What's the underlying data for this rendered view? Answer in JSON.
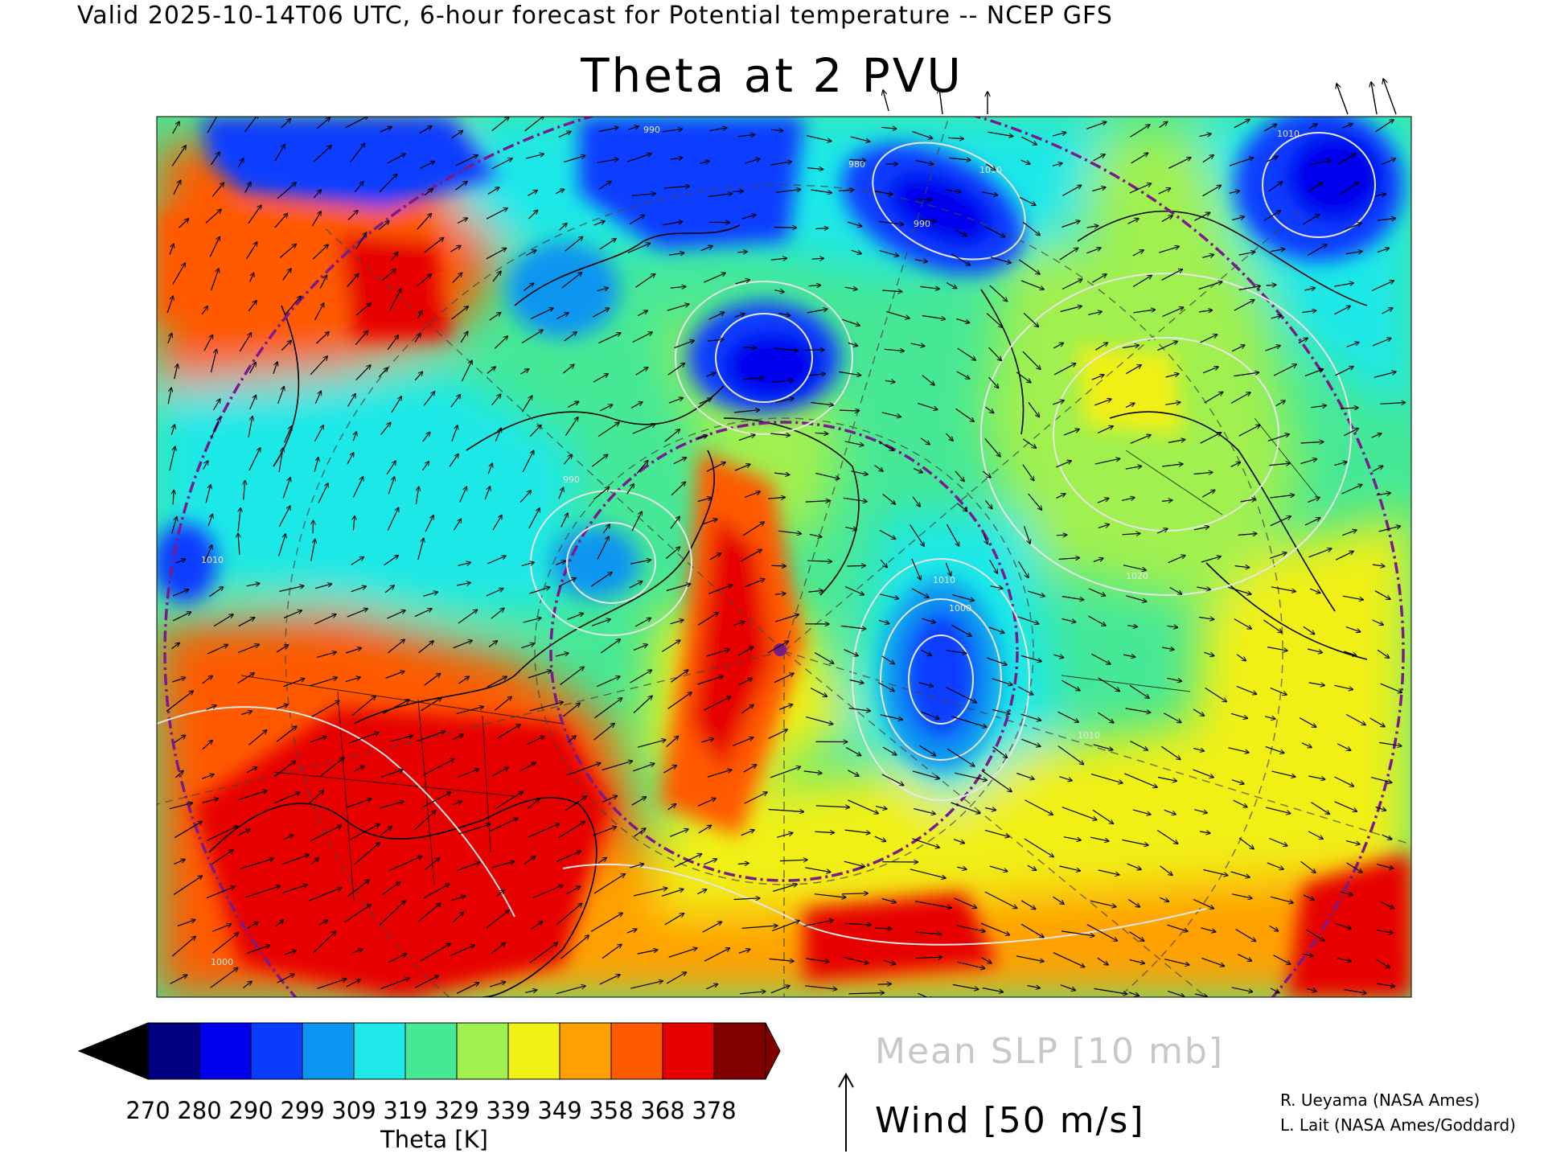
{
  "header": {
    "valid_line": "Valid 2025-10-14T06 UTC, 6-hour forecast for Potential temperature -- NCEP GFS"
  },
  "map": {
    "title": "Theta at 2 PVU",
    "field": "potential temperature on the 2 PVU surface",
    "slp_contour_labels": [
      "990",
      "980",
      "990",
      "1010",
      "1010",
      "1010",
      "990",
      "1010",
      "1000",
      "1020",
      "1010",
      "1000"
    ]
  },
  "colorbar": {
    "title": "Theta [K]",
    "tick_labels": [
      "270",
      "280",
      "290",
      "299",
      "309",
      "319",
      "329",
      "339",
      "349",
      "358",
      "368",
      "378"
    ],
    "colors": [
      "#000080",
      "#0000ee",
      "#0a3cff",
      "#0a96f0",
      "#1ee8e8",
      "#46e896",
      "#a0f050",
      "#f0f014",
      "#ffa000",
      "#ff5a00",
      "#e60000",
      "#820000"
    ],
    "under_color": "#000000",
    "over_color": "#820000"
  },
  "legend": {
    "slp_label": "Mean SLP [10 mb]",
    "wind_label": "Wind [50 m/s]",
    "slp_color": "#c8c8c8"
  },
  "credits": {
    "line1": "R. Ueyama (NASA Ames)",
    "line2": "L. Lait (NASA Ames/Goddard)"
  }
}
